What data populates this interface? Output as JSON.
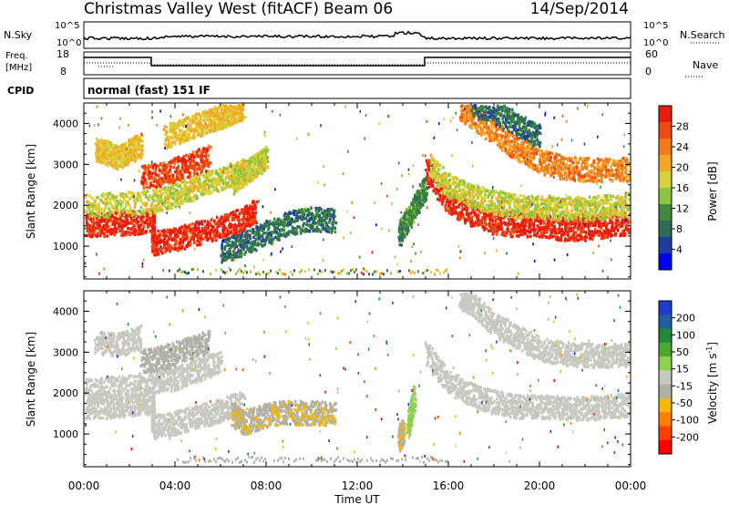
{
  "header": {
    "radar": "Christmas Valley West (fitACF)",
    "beam": "Beam 06",
    "date": "14/Sep/2014"
  },
  "top_panels": {
    "nsky": {
      "left_label": "N.Sky",
      "right_label": "N.Search",
      "left_ticks": [
        "10^5",
        "10^0"
      ],
      "right_ticks": [
        "10^5",
        "10^0"
      ]
    },
    "freq": {
      "left_label_1": "Freq.",
      "left_label_2": "[MHz]",
      "left_ticks": [
        "18",
        "8"
      ],
      "right_label": "Nave",
      "right_ticks": [
        "60",
        "0"
      ]
    },
    "cpid": {
      "label": "CPID",
      "value": "normal (fast) 151 IF"
    }
  },
  "x_axis": {
    "label": "Time UT",
    "ticks": [
      "00:00",
      "04:00",
      "08:00",
      "12:00",
      "16:00",
      "20:00",
      "00:00"
    ]
  },
  "colors": {
    "power_scale": [
      "#0000ff",
      "#1f3d9e",
      "#2f6b5a",
      "#3e8a3a",
      "#8cc63f",
      "#d8d23a",
      "#f5a623",
      "#f27a1a",
      "#ee4a12",
      "#e81c0c"
    ],
    "velocity_scale": [
      "#ff0000",
      "#ff4000",
      "#ff8000",
      "#f5b800",
      "#b0b0a8",
      "#c8c8c0",
      "#8fd14f",
      "#4ca82e",
      "#1f8a3a",
      "#1f5fa0",
      "#1f3ccf"
    ]
  },
  "chart_data": [
    {
      "type": "heatmap",
      "title": "",
      "xlabel": "Time UT",
      "ylabel": "Slant Range [km]",
      "xlim": [
        0,
        24
      ],
      "ylim": [
        200,
        4500
      ],
      "y_ticks": [
        "1000",
        "2000",
        "3000",
        "4000"
      ],
      "colorbar": {
        "label": "Power [dB]",
        "ticks": [
          "4",
          "8",
          "12",
          "16",
          "20",
          "24",
          "28"
        ],
        "range": [
          0,
          30
        ]
      },
      "series": [
        {
          "x": [
            0.0,
            1.0,
            2.0,
            3.0,
            3.0,
            4.0,
            5.0,
            6.0,
            7.0,
            7.5
          ],
          "y": [
            1550,
            1550,
            1600,
            1650,
            1100,
            1200,
            1350,
            1500,
            1700,
            1900
          ],
          "value": 28
        },
        {
          "x": [
            0.0,
            1.5,
            3.0,
            4.0,
            5.0,
            6.0,
            7.0
          ],
          "y": [
            2000,
            2050,
            2100,
            2300,
            2500,
            2700,
            2900
          ],
          "value": 16
        },
        {
          "x": [
            0.5,
            1.0,
            1.5,
            2.0,
            2.5
          ],
          "y": [
            3400,
            3300,
            3200,
            3350,
            3500
          ],
          "value": 18
        },
        {
          "x": [
            2.5,
            3.5,
            4.5,
            5.5
          ],
          "y": [
            2700,
            2800,
            3000,
            3200
          ],
          "value": 26
        },
        {
          "x": [
            3.5,
            4.5,
            5.5,
            6.0,
            6.5,
            7.0
          ],
          "y": [
            3700,
            3900,
            4100,
            4200,
            4300,
            4400
          ],
          "value": 18
        },
        {
          "x": [
            6.0,
            7.0,
            8.0,
            9.0,
            10.0,
            11.0
          ],
          "y": [
            900,
            1100,
            1350,
            1600,
            1700,
            1650
          ],
          "value": 8
        },
        {
          "x": [
            6.5,
            7.0,
            7.5,
            8.0
          ],
          "y": [
            2600,
            2800,
            3000,
            3200
          ],
          "value": 16
        },
        {
          "x": [
            13.8,
            14.2,
            14.6,
            15.0
          ],
          "y": [
            1300,
            1700,
            2100,
            2500
          ],
          "value": 10
        },
        {
          "x": [
            15.0,
            16.0,
            17.0,
            18.0,
            19.0,
            20.0,
            21.0,
            22.0,
            23.0,
            24.0
          ],
          "y": [
            2900,
            2100,
            1800,
            1600,
            1550,
            1550,
            1450,
            1450,
            1550,
            1600
          ],
          "value": 28
        },
        {
          "x": [
            15.2,
            16.0,
            17.0,
            18.0,
            19.0,
            20.0,
            21.0,
            22.0,
            23.0,
            24.0
          ],
          "y": [
            3000,
            2500,
            2250,
            2100,
            2000,
            2000,
            1950,
            1950,
            2000,
            2050
          ],
          "value": 16
        },
        {
          "x": [
            16.5,
            17.0,
            18.0,
            19.0,
            20.0,
            21.0,
            22.0,
            23.0,
            24.0
          ],
          "y": [
            4400,
            4200,
            3800,
            3400,
            3100,
            2950,
            2900,
            2900,
            2900
          ],
          "value": 22
        },
        {
          "x": [
            17.0,
            18.0,
            19.0,
            20.0
          ],
          "y": [
            4500,
            4300,
            4000,
            3700
          ],
          "value": 8
        }
      ]
    },
    {
      "type": "heatmap",
      "title": "",
      "xlabel": "Time UT",
      "ylabel": "Slant Range [km]",
      "xlim": [
        0,
        24
      ],
      "ylim": [
        200,
        4500
      ],
      "y_ticks": [
        "1000",
        "2000",
        "3000",
        "4000"
      ],
      "colorbar": {
        "label": "Velocity [m s^-1]",
        "ticks": [
          "200",
          "100",
          "50",
          "15",
          "-15",
          "-50",
          "-100",
          "-200"
        ],
        "range": [
          -250,
          250
        ]
      },
      "series": [
        {
          "x": [
            0.0,
            1.0,
            2.0,
            3.0,
            3.0,
            4.0,
            5.0,
            6.0,
            7.0
          ],
          "y": [
            1700,
            1700,
            1750,
            1800,
            1200,
            1300,
            1450,
            1600,
            1800
          ],
          "value": 0
        },
        {
          "x": [
            0.0,
            1.5,
            3.0,
            4.0,
            5.0,
            6.0
          ],
          "y": [
            2100,
            2150,
            2300,
            2400,
            2600,
            2800
          ],
          "value": 0
        },
        {
          "x": [
            0.5,
            1.5,
            2.5
          ],
          "y": [
            3300,
            3200,
            3400
          ],
          "value": 0
        },
        {
          "x": [
            2.5,
            3.5,
            4.5,
            5.5
          ],
          "y": [
            2800,
            2900,
            3100,
            3300
          ],
          "value": -40
        },
        {
          "x": [
            6.5,
            7.0,
            8.0,
            9.0,
            10.0,
            11.0
          ],
          "y": [
            1500,
            1300,
            1500,
            1550,
            1550,
            1500
          ],
          "value": -60
        },
        {
          "x": [
            13.8,
            14.0
          ],
          "y": [
            900,
            1100
          ],
          "value": -60
        },
        {
          "x": [
            14.2,
            14.5
          ],
          "y": [
            1200,
            2000
          ],
          "value": 40
        },
        {
          "x": [
            15.0,
            16.0,
            17.0,
            18.0,
            19.0,
            20.0,
            21.0,
            22.0,
            23.0,
            24.0
          ],
          "y": [
            3000,
            2300,
            2000,
            1800,
            1700,
            1700,
            1650,
            1650,
            1700,
            1750
          ],
          "value": 0
        },
        {
          "x": [
            16.5,
            17.0,
            18.0,
            19.0,
            20.0,
            21.0,
            22.0,
            23.0,
            24.0
          ],
          "y": [
            4400,
            4200,
            3700,
            3400,
            3100,
            3000,
            2950,
            2950,
            2950
          ],
          "value": 0
        }
      ]
    }
  ]
}
